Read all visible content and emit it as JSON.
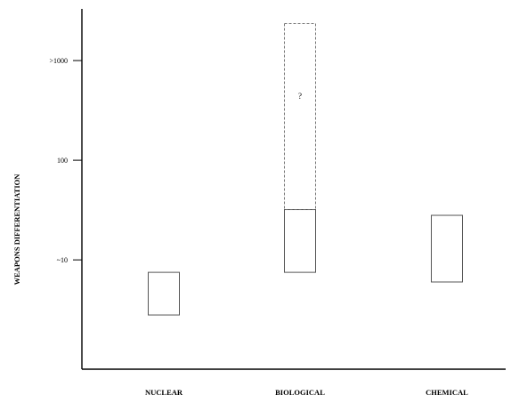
{
  "chart_data": {
    "type": "bar",
    "ylabel": "WEAPONS DIFFERENTIATION",
    "yscale": "log",
    "ylim": [
      0.8,
      3300
    ],
    "yticks": [
      {
        "value": 10,
        "label": "~10"
      },
      {
        "value": 100,
        "label": "100"
      },
      {
        "value": 1000,
        "label": ">1000"
      }
    ],
    "categories": [
      "NUCLEAR",
      "BIOLOGICAL",
      "CHEMICAL"
    ],
    "ranges": [
      {
        "category": "NUCLEAR",
        "low": 2.8,
        "high": 7.5,
        "style": "solid",
        "annotation": ""
      },
      {
        "category": "BIOLOGICAL",
        "low": 7.5,
        "high": 32,
        "style": "solid",
        "annotation": ""
      },
      {
        "category": "BIOLOGICAL",
        "low": 32,
        "high": 2350,
        "style": "dashed",
        "annotation": "?"
      },
      {
        "category": "CHEMICAL",
        "low": 6,
        "high": 28,
        "style": "solid",
        "annotation": ""
      }
    ],
    "grid": false,
    "legend": "none"
  }
}
